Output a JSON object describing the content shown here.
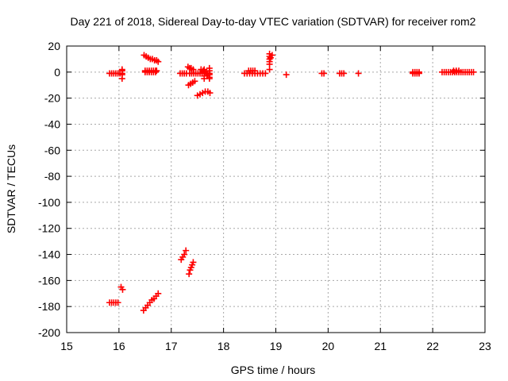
{
  "chart_data": {
    "type": "scatter",
    "title": "Day 221 of 2018, Sidereal Day-to-day VTEC variation (SDTVAR) for receiver rom2",
    "xlabel": "GPS time / hours",
    "ylabel": "SDTVAR / TECUs",
    "xlim": [
      15,
      23
    ],
    "ylim": [
      -200,
      20
    ],
    "xticks": [
      15,
      16,
      17,
      18,
      19,
      20,
      21,
      22,
      23
    ],
    "yticks": [
      20,
      0,
      -20,
      -40,
      -60,
      -80,
      -100,
      -120,
      -140,
      -160,
      -180,
      -200
    ],
    "grid": true,
    "marker": "plus",
    "colors": {
      "series": "#ff0000"
    },
    "series": [
      {
        "name": "SDTVAR",
        "segments": [
          {
            "x": [
              15.82,
              15.86,
              15.9,
              15.94,
              15.98,
              16.02,
              16.06
            ],
            "y": [
              -1,
              -1,
              -1,
              -1,
              -1,
              -1,
              -1
            ]
          },
          {
            "x": [
              16.06,
              16.06,
              16.06,
              16.06
            ],
            "y": [
              -5,
              -2,
              1,
              2
            ]
          },
          {
            "x": [
              15.82,
              15.86,
              15.9,
              15.94,
              15.98
            ],
            "y": [
              -177,
              -177,
              -177,
              -177,
              -177
            ]
          },
          {
            "x": [
              16.04,
              16.07
            ],
            "y": [
              -165,
              -167
            ]
          },
          {
            "x": [
              16.48,
              16.52,
              16.56,
              16.6,
              16.64,
              16.68,
              16.72,
              16.75
            ],
            "y": [
              13,
              12,
              11,
              10,
              10,
              9,
              9,
              8
            ]
          },
          {
            "x": [
              16.5,
              16.54,
              16.58,
              16.62,
              16.66,
              16.7,
              16.72
            ],
            "y": [
              1,
              1,
              1,
              1,
              1,
              1,
              1
            ]
          },
          {
            "x": [
              16.5,
              16.54,
              16.58,
              16.62,
              16.66,
              16.7
            ],
            "y": [
              0,
              0,
              0,
              0,
              0,
              0
            ]
          },
          {
            "x": [
              16.47,
              16.51,
              16.55,
              16.59,
              16.63,
              16.67,
              16.71,
              16.75
            ],
            "y": [
              -183,
              -181,
              -179,
              -177,
              -175,
              -174,
              -172,
              -170
            ]
          },
          {
            "x": [
              17.17,
              17.21,
              17.25,
              17.29
            ],
            "y": [
              -1,
              -1,
              -1,
              -1
            ]
          },
          {
            "x": [
              17.19,
              17.22,
              17.25,
              17.28
            ],
            "y": [
              -144,
              -142,
              -140,
              -137
            ]
          },
          {
            "x": [
              17.34,
              17.36,
              17.38,
              17.4,
              17.42
            ],
            "y": [
              -155,
              -152,
              -150,
              -148,
              -146
            ]
          },
          {
            "x": [
              17.32,
              17.35,
              17.38,
              17.42
            ],
            "y": [
              4,
              3,
              3,
              2
            ]
          },
          {
            "x": [
              17.35,
              17.39,
              17.43,
              17.47,
              17.51,
              17.55,
              17.59,
              17.63,
              17.67,
              17.7,
              17.73
            ],
            "y": [
              -1,
              -1,
              -1,
              -1,
              -1,
              -1,
              -1,
              -1,
              -1,
              -1,
              -1
            ]
          },
          {
            "x": [
              17.33,
              17.37,
              17.41,
              17.45
            ],
            "y": [
              -10,
              -9,
              -8,
              -7
            ]
          },
          {
            "x": [
              17.5,
              17.55,
              17.6,
              17.65,
              17.7,
              17.74
            ],
            "y": [
              -18,
              -17,
              -16,
              -15,
              -15,
              -16
            ]
          },
          {
            "x": [
              17.57,
              17.61,
              17.65,
              17.69,
              17.73
            ],
            "y": [
              2,
              1,
              0,
              -3,
              -5
            ]
          },
          {
            "x": [
              17.63,
              17.63,
              17.63,
              17.63
            ],
            "y": [
              -5,
              -3,
              0,
              2
            ]
          },
          {
            "x": [
              17.73,
              17.73,
              17.73,
              17.73
            ],
            "y": [
              -4,
              -2,
              1,
              3
            ]
          },
          {
            "x": [
              18.4,
              18.45,
              18.5,
              18.55,
              18.6,
              18.65,
              18.7,
              18.75,
              18.8
            ],
            "y": [
              -1,
              -1,
              -1,
              -1,
              -1,
              -1,
              -1,
              -1,
              -1
            ]
          },
          {
            "x": [
              18.48,
              18.52,
              18.56,
              18.6
            ],
            "y": [
              1,
              1,
              1,
              1
            ]
          },
          {
            "x": [
              18.88,
              18.88,
              18.88,
              18.88,
              18.88
            ],
            "y": [
              14,
              12,
              10,
              8,
              6
            ]
          },
          {
            "x": [
              18.9,
              18.93
            ],
            "y": [
              11,
              13
            ]
          },
          {
            "x": [
              18.88
            ],
            "y": [
              2
            ]
          },
          {
            "x": [
              19.2
            ],
            "y": [
              -2
            ]
          },
          {
            "x": [
              19.88,
              19.92
            ],
            "y": [
              -1,
              -1
            ]
          },
          {
            "x": [
              20.22,
              20.26,
              20.3
            ],
            "y": [
              -1,
              -1,
              -1
            ]
          },
          {
            "x": [
              20.58
            ],
            "y": [
              -1
            ]
          },
          {
            "x": [
              21.62,
              21.66,
              21.7,
              21.74
            ],
            "y": [
              0,
              0,
              0,
              0
            ]
          },
          {
            "x": [
              21.62,
              21.66,
              21.7,
              21.74
            ],
            "y": [
              -1,
              -1,
              -1,
              -1
            ]
          },
          {
            "x": [
              22.18,
              22.22,
              22.26,
              22.3,
              22.34,
              22.38,
              22.42,
              22.46,
              22.5,
              22.54,
              22.58,
              22.62,
              22.66,
              22.7,
              22.74,
              22.78
            ],
            "y": [
              0,
              0,
              0,
              0,
              0,
              0,
              0,
              0,
              0,
              0,
              0,
              0,
              0,
              0,
              0,
              0
            ]
          },
          {
            "x": [
              22.4,
              22.45,
              22.5
            ],
            "y": [
              1,
              1,
              1
            ]
          }
        ]
      }
    ]
  }
}
